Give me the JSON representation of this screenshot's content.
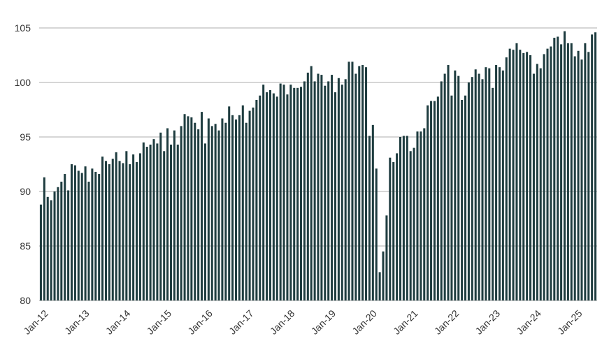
{
  "chart_data": {
    "type": "bar",
    "title": "",
    "xlabel": "",
    "ylabel": "",
    "ylim": [
      80,
      105
    ],
    "yticks": [
      "80",
      "85",
      "90",
      "95",
      "100",
      "105"
    ],
    "grid": "horizontal",
    "bar_color": "#1f3d40",
    "grid_color": "#c8c8c8",
    "x_tick_labels": [
      "Jan-12",
      "Jan-13",
      "Jan-14",
      "Jan-15",
      "Jan-16",
      "Jan-17",
      "Jan-18",
      "Jan-19",
      "Jan-20",
      "Jan-21",
      "Jan-22",
      "Jan-23",
      "Jan-24",
      "Jan-25"
    ],
    "start": "2012-01",
    "values": [
      88.8,
      91.3,
      89.5,
      89.2,
      90.0,
      90.4,
      90.9,
      91.6,
      90.1,
      92.5,
      92.4,
      91.9,
      91.7,
      92.3,
      90.9,
      92.1,
      91.8,
      91.6,
      93.2,
      92.8,
      92.5,
      93.0,
      93.6,
      92.8,
      92.6,
      93.7,
      92.5,
      93.4,
      92.7,
      93.5,
      94.5,
      94.1,
      94.3,
      94.8,
      94.4,
      95.4,
      93.7,
      95.8,
      94.3,
      95.6,
      94.3,
      96.0,
      97.1,
      96.9,
      96.8,
      96.3,
      95.7,
      97.3,
      94.4,
      96.7,
      96.0,
      96.2,
      95.6,
      96.7,
      96.3,
      97.8,
      97.0,
      96.6,
      97.0,
      97.9,
      96.3,
      97.4,
      97.7,
      98.4,
      98.8,
      99.8,
      99.1,
      99.3,
      99.0,
      98.7,
      99.9,
      99.8,
      98.9,
      99.8,
      99.5,
      99.5,
      99.6,
      100.1,
      100.9,
      101.5,
      100.1,
      100.8,
      100.7,
      99.7,
      100.1,
      100.7,
      99.1,
      100.4,
      99.8,
      100.3,
      101.9,
      101.9,
      100.8,
      101.5,
      101.6,
      101.4,
      95.1,
      96.1,
      92.1,
      82.6,
      84.5,
      87.8,
      93.1,
      92.7,
      93.5,
      95.0,
      95.1,
      95.1,
      93.7,
      94.0,
      95.5,
      95.5,
      95.8,
      97.9,
      98.3,
      98.3,
      98.7,
      100.1,
      100.8,
      101.6,
      98.8,
      101.1,
      100.6,
      98.4,
      98.8,
      100.0,
      100.5,
      101.2,
      100.8,
      100.3,
      101.4,
      101.3,
      99.5,
      101.6,
      101.4,
      101.1,
      102.3,
      103.1,
      103.0,
      103.6,
      103.0,
      102.7,
      102.8,
      102.5,
      100.8,
      101.7,
      101.3,
      102.6,
      103.1,
      103.3,
      104.1,
      104.2,
      103.5,
      104.7,
      103.6,
      103.6,
      102.4,
      102.9,
      102.1,
      103.6,
      102.8,
      104.4,
      104.6
    ]
  }
}
